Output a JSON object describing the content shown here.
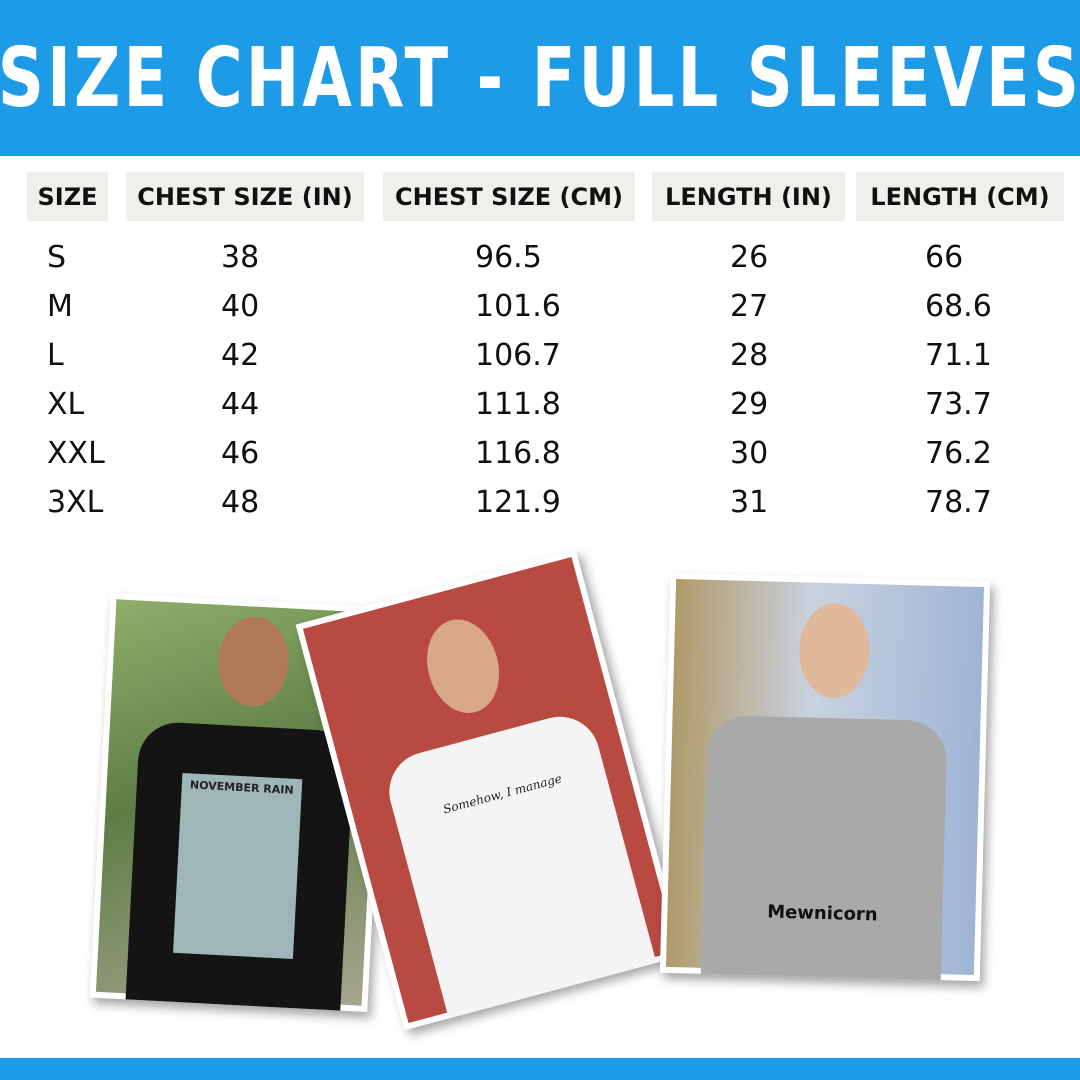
{
  "title": "SIZE CHART - FULL SLEEVES",
  "colors": {
    "brand_blue": "#1e9be6",
    "header_bg": "#f0efeb"
  },
  "table": {
    "headers": [
      "SIZE",
      "CHEST SIZE (IN)",
      "CHEST SIZE (CM)",
      "LENGTH (IN)",
      "LENGTH (CM)"
    ],
    "rows": [
      [
        "S",
        "38",
        "96.5",
        "26",
        "66"
      ],
      [
        "M",
        "40",
        "101.6",
        "27",
        "68.6"
      ],
      [
        "L",
        "42",
        "106.7",
        "28",
        "71.1"
      ],
      [
        "XL",
        "44",
        "111.8",
        "29",
        "73.7"
      ],
      [
        "XXL",
        "46",
        "116.8",
        "30",
        "76.2"
      ],
      [
        "3XL",
        "48",
        "121.9",
        "31",
        "78.7"
      ]
    ]
  },
  "photos": [
    {
      "print_text": "NOVEMBER RAIN",
      "shirt_color": "black"
    },
    {
      "print_text": "Somehow, I manage",
      "shirt_color": "white"
    },
    {
      "print_text": "Mewnicorn",
      "shirt_color": "grey"
    }
  ]
}
